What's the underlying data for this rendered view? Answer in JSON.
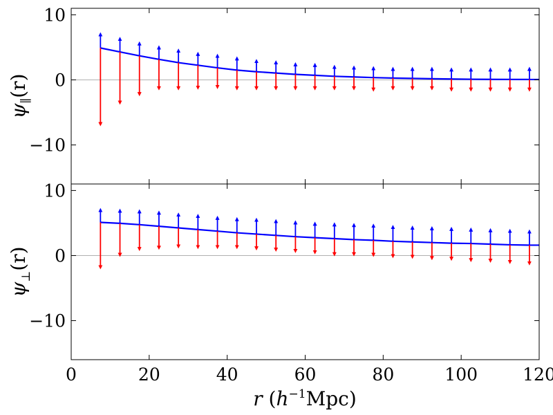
{
  "chart_data": [
    {
      "type": "line",
      "panel": "top",
      "ylabel_symbol": "ψ",
      "ylabel_subscript": "∥",
      "ylabel_arg": "(r)",
      "xlim": [
        0,
        120
      ],
      "ylim": [
        -16,
        11
      ],
      "yticks": [
        10,
        0,
        -10
      ],
      "ytick_labels": [
        "10",
        "0",
        "−10"
      ],
      "x": [
        7.5,
        12.5,
        17.5,
        22.5,
        27.5,
        32.5,
        37.5,
        42.5,
        47.5,
        52.5,
        57.5,
        62.5,
        67.5,
        72.5,
        77.5,
        82.5,
        87.5,
        92.5,
        97.5,
        102.5,
        107.5,
        112.5,
        117.5
      ],
      "series": [
        {
          "name": "model",
          "color": "#0000ff",
          "style": "line",
          "x": [
            7.5,
            12.5,
            17.5,
            22.5,
            27.5,
            32.5,
            37.5,
            42.5,
            47.5,
            52.5,
            57.5,
            62.5,
            67.5,
            72.5,
            77.5,
            82.5,
            87.5,
            92.5,
            97.5,
            102.5,
            107.5,
            112.5,
            117.5,
            120
          ],
          "values": [
            4.9,
            4.3,
            3.7,
            3.15,
            2.65,
            2.25,
            1.85,
            1.5,
            1.25,
            1.05,
            0.85,
            0.7,
            0.55,
            0.45,
            0.35,
            0.28,
            0.22,
            0.17,
            0.13,
            0.1,
            0.08,
            0.07,
            0.06,
            0.06
          ]
        },
        {
          "name": "upper",
          "color": "#0000ff",
          "style": "arrow-up",
          "values": [
            7.0,
            6.3,
            5.6,
            5.0,
            4.5,
            4.0,
            3.7,
            3.3,
            2.9,
            2.7,
            2.4,
            2.3,
            2.0,
            1.9,
            1.8,
            1.7,
            1.7,
            1.7,
            1.6,
            1.6,
            1.6,
            1.6,
            1.7
          ]
        },
        {
          "name": "lower",
          "color": "#ff0000",
          "style": "arrow-down",
          "values": [
            -6.8,
            -3.5,
            -2.2,
            -1.3,
            -1.3,
            -1.2,
            -1.1,
            -1.3,
            -1.3,
            -1.3,
            -1.3,
            -1.3,
            -1.3,
            -1.3,
            -1.5,
            -1.3,
            -1.3,
            -1.3,
            -1.5,
            -1.5,
            -1.5,
            -1.5,
            -1.5
          ]
        }
      ]
    },
    {
      "type": "line",
      "panel": "bottom",
      "ylabel_symbol": "ψ",
      "ylabel_subscript": "⊥",
      "ylabel_arg": "(r)",
      "xlim": [
        0,
        120
      ],
      "ylim": [
        -16,
        11
      ],
      "yticks": [
        10,
        0,
        -10
      ],
      "ytick_labels": [
        "10",
        "0",
        "−10"
      ],
      "xticks": [
        0,
        20,
        40,
        60,
        80,
        100,
        120
      ],
      "xtick_labels": [
        "0",
        "20",
        "40",
        "60",
        "80",
        "100",
        "120"
      ],
      "xlabel": {
        "var": "r",
        "open": " (",
        "h": "h",
        "exp": "−1",
        "unit": "Mpc)"
      },
      "x": [
        7.5,
        12.5,
        17.5,
        22.5,
        27.5,
        32.5,
        37.5,
        42.5,
        47.5,
        52.5,
        57.5,
        62.5,
        67.5,
        72.5,
        77.5,
        82.5,
        87.5,
        92.5,
        97.5,
        102.5,
        107.5,
        112.5,
        117.5
      ],
      "series": [
        {
          "name": "model",
          "color": "#0000ff",
          "style": "line",
          "x": [
            7.5,
            12.5,
            17.5,
            22.5,
            27.5,
            32.5,
            37.5,
            42.5,
            47.5,
            52.5,
            57.5,
            62.5,
            67.5,
            72.5,
            77.5,
            82.5,
            87.5,
            92.5,
            97.5,
            102.5,
            107.5,
            112.5,
            117.5,
            120
          ],
          "values": [
            5.1,
            4.95,
            4.75,
            4.5,
            4.25,
            4.0,
            3.75,
            3.5,
            3.3,
            3.1,
            2.9,
            2.75,
            2.6,
            2.45,
            2.35,
            2.2,
            2.1,
            2.0,
            1.9,
            1.85,
            1.75,
            1.65,
            1.6,
            1.6
          ]
        },
        {
          "name": "upper",
          "color": "#0000ff",
          "style": "arrow-up",
          "values": [
            7.0,
            6.9,
            6.8,
            6.6,
            6.3,
            6.1,
            5.8,
            5.6,
            5.5,
            5.3,
            5.1,
            4.9,
            4.8,
            4.7,
            4.6,
            4.4,
            4.3,
            4.2,
            4.1,
            4.0,
            3.9,
            3.8,
            3.7
          ]
        },
        {
          "name": "lower",
          "color": "#ff0000",
          "style": "arrow-down",
          "values": [
            -1.8,
            0.1,
            1.0,
            1.2,
            1.4,
            1.3,
            1.3,
            1.3,
            1.1,
            0.9,
            0.7,
            0.5,
            0.2,
            0.2,
            0.1,
            -0.1,
            -0.2,
            -0.4,
            -0.5,
            -0.7,
            -0.8,
            -1.0,
            -1.2
          ]
        }
      ]
    }
  ]
}
